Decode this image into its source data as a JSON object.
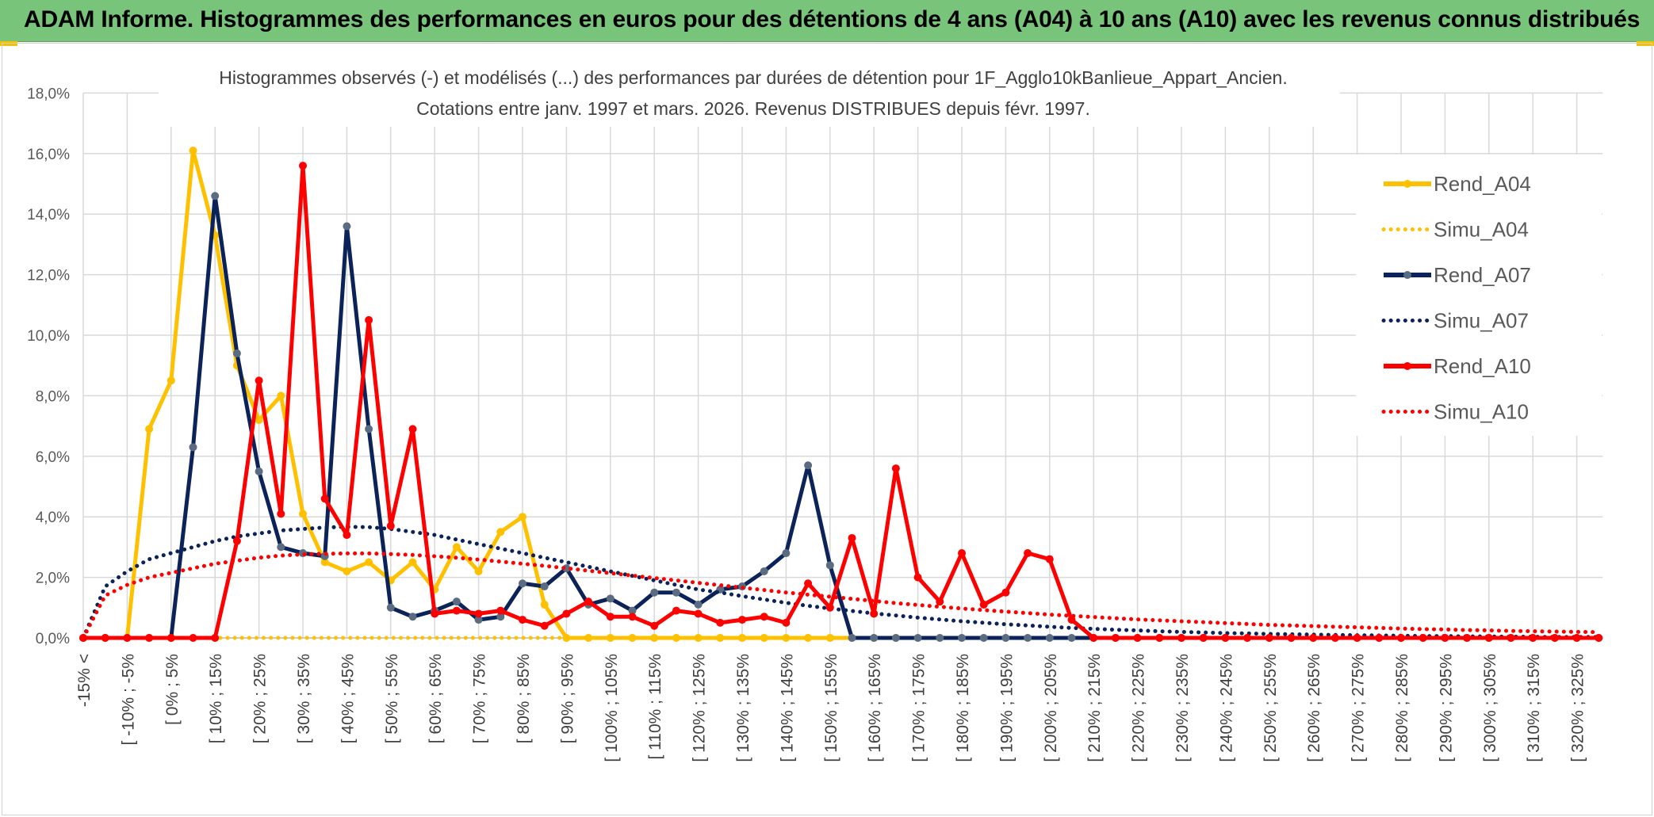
{
  "banner": {
    "title": "ADAM Informe. Histogrammes des performances en euros pour des détentions de 4 ans (A04) à 10 ans (A10) avec les revenus connus distribués"
  },
  "colors": {
    "banner_bg": "#79c47b",
    "A04": "#ffc000",
    "A07": "#0b2358",
    "A10": "#ff0000",
    "marker_A07": "#5a6b82"
  },
  "chart_data": {
    "type": "line",
    "title_line1": "Histogrammes observés (-) et modélisés (...) des performances par durées de détention pour 1F_Agglo10kBanlieue_Appart_Ancien.",
    "title_line2": "Cotations entre janv. 1997 et mars. 2026. Revenus DISTRIBUES depuis févr. 1997.",
    "ylim": [
      0,
      18
    ],
    "y_ticks": [
      "0,0%",
      "2,0%",
      "4,0%",
      "6,0%",
      "8,0%",
      "10,0%",
      "12,0%",
      "14,0%",
      "16,0%",
      "18,0%"
    ],
    "grid": true,
    "legend_position": "right",
    "x_labels": [
      "-15% <",
      "[ -10% ; -5%",
      "[ 0% ; 5%",
      "[ 10% ; 15%",
      "[ 20% ; 25%",
      "[ 30% ; 35%",
      "[ 40% ; 45%",
      "[ 50% ; 55%",
      "[ 60% ; 65%",
      "[ 70% ; 75%",
      "[ 80% ; 85%",
      "[ 90% ; 95%",
      "[ 100% ; 105%",
      "[ 110% ; 115%",
      "[ 120% ; 125%",
      "[ 130% ; 135%",
      "[ 140% ; 145%",
      "[ 150% ; 155%",
      "[ 160% ; 165%",
      "[ 170% ; 175%",
      "[ 180% ; 185%",
      "[ 190% ; 195%",
      "[ 200% ; 205%",
      "[ 210% ; 215%",
      "[ 220% ; 225%",
      "[ 230% ; 235%",
      "[ 240% ; 245%",
      "[ 250% ; 255%",
      "[ 260% ; 265%",
      "[ 270% ; 275%",
      "[ 280% ; 285%",
      "[ 290% ; 295%",
      "[ 300% ; 305%",
      "[ 310% ; 315%",
      "[ 320% ; 325%"
    ],
    "x_start": -15,
    "x_step": 5,
    "series": [
      {
        "name": "Rend_A04",
        "key": "A04",
        "style": "solid",
        "values": [
          0,
          0,
          0,
          6.9,
          8.5,
          16.1,
          13.3,
          9.0,
          7.2,
          8.0,
          4.1,
          2.5,
          2.2,
          2.5,
          1.9,
          2.5,
          1.6,
          3.0,
          2.2,
          3.5,
          4.0,
          1.1,
          0,
          0,
          0,
          0,
          0,
          0,
          0,
          0,
          0,
          0,
          0,
          0,
          0,
          0,
          0,
          0
        ]
      },
      {
        "name": "Simu_A04",
        "key": "A04",
        "style": "dotted",
        "values": [
          0,
          0,
          0,
          0,
          0,
          0,
          0,
          0,
          0,
          0,
          0,
          0,
          0,
          0,
          0,
          0,
          0,
          0,
          0,
          0,
          0,
          0,
          0,
          0,
          0,
          0,
          0,
          0,
          0,
          0,
          0,
          0,
          0,
          0,
          0,
          0,
          0,
          0,
          0,
          0,
          0,
          0,
          0,
          0,
          0,
          0,
          0,
          0,
          0,
          0,
          0,
          0,
          0,
          0,
          0,
          0,
          0,
          0,
          0,
          0,
          0,
          0,
          0,
          0,
          0,
          0,
          0,
          0,
          0,
          0
        ]
      },
      {
        "name": "Rend_A07",
        "key": "A07",
        "style": "solid",
        "values": [
          0,
          0,
          0,
          0,
          0,
          6.3,
          14.6,
          9.4,
          5.5,
          3.0,
          2.8,
          2.7,
          13.6,
          6.9,
          1.0,
          0.7,
          0.9,
          1.2,
          0.6,
          0.7,
          1.8,
          1.7,
          2.3,
          1.1,
          1.3,
          0.9,
          1.5,
          1.5,
          1.1,
          1.6,
          1.7,
          2.2,
          2.8,
          5.7,
          2.4,
          0,
          0,
          0,
          0,
          0,
          0,
          0,
          0,
          0,
          0,
          0,
          0,
          0,
          0,
          0,
          0,
          0,
          0,
          0,
          0,
          0,
          0,
          0,
          0,
          0,
          0,
          0,
          0,
          0,
          0,
          0,
          0,
          0,
          0,
          0
        ]
      },
      {
        "name": "Simu_A07",
        "key": "A07",
        "style": "dotted",
        "values": [
          0,
          1.7,
          2.2,
          2.6,
          2.8,
          3.0,
          3.2,
          3.35,
          3.45,
          3.55,
          3.6,
          3.65,
          3.67,
          3.66,
          3.6,
          3.5,
          3.4,
          3.25,
          3.1,
          2.95,
          2.8,
          2.65,
          2.5,
          2.35,
          2.2,
          2.05,
          1.9,
          1.75,
          1.6,
          1.5,
          1.38,
          1.27,
          1.16,
          1.06,
          0.97,
          0.89,
          0.81,
          0.74,
          0.67,
          0.61,
          0.55,
          0.5,
          0.45,
          0.41,
          0.37,
          0.33,
          0.3,
          0.27,
          0.25,
          0.22,
          0.2,
          0.18,
          0.16,
          0.15,
          0.13,
          0.12,
          0.11,
          0.1,
          0.09,
          0.08,
          0.07,
          0.06,
          0.06,
          0.05,
          0.05,
          0.04,
          0.04,
          0.03,
          0.03,
          0.03
        ]
      },
      {
        "name": "Rend_A10",
        "key": "A10",
        "style": "solid",
        "values": [
          0,
          0,
          0,
          0,
          0,
          0,
          0,
          3.2,
          8.5,
          4.1,
          15.6,
          4.6,
          3.4,
          10.5,
          3.7,
          6.9,
          0.8,
          0.9,
          0.8,
          0.9,
          0.6,
          0.4,
          0.8,
          1.2,
          0.7,
          0.7,
          0.4,
          0.9,
          0.8,
          0.5,
          0.6,
          0.7,
          0.5,
          1.8,
          1.0,
          3.3,
          0.8,
          5.6,
          2.0,
          1.2,
          2.8,
          1.1,
          1.5,
          2.8,
          2.6,
          0.6,
          0,
          0,
          0,
          0,
          0,
          0,
          0,
          0,
          0,
          0,
          0,
          0,
          0,
          0,
          0,
          0,
          0,
          0,
          0,
          0,
          0,
          0,
          0,
          0
        ]
      },
      {
        "name": "Simu_A10",
        "key": "A10",
        "style": "dotted",
        "values": [
          0,
          1.4,
          1.75,
          2.0,
          2.15,
          2.3,
          2.45,
          2.55,
          2.65,
          2.72,
          2.76,
          2.78,
          2.79,
          2.79,
          2.77,
          2.74,
          2.7,
          2.65,
          2.59,
          2.52,
          2.45,
          2.38,
          2.3,
          2.22,
          2.14,
          2.06,
          1.98,
          1.9,
          1.82,
          1.74,
          1.66,
          1.58,
          1.5,
          1.43,
          1.36,
          1.29,
          1.22,
          1.15,
          1.09,
          1.03,
          0.97,
          0.92,
          0.87,
          0.82,
          0.77,
          0.73,
          0.69,
          0.65,
          0.61,
          0.58,
          0.55,
          0.52,
          0.49,
          0.46,
          0.43,
          0.41,
          0.39,
          0.37,
          0.35,
          0.33,
          0.31,
          0.29,
          0.28,
          0.26,
          0.25,
          0.23,
          0.22,
          0.21,
          0.2,
          0.19
        ]
      }
    ]
  }
}
